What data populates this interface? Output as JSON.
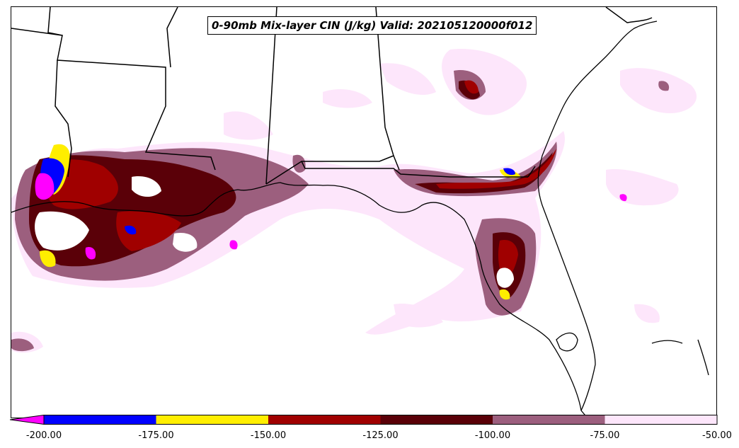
{
  "title": "0-90mb Mix-layer CIN (J/kg) Valid: 202105120000f012",
  "colorbar": {
    "tick_labels": [
      "-200.00",
      "-175.00",
      "-150.00",
      "-125.00",
      "-100.00",
      "-75.00",
      "-50.00"
    ],
    "bins": [
      {
        "range": "< -200",
        "color": "#ff00ff"
      },
      {
        "range": "-200 to -175",
        "color": "#0000ff"
      },
      {
        "range": "-175 to -150",
        "color": "#ffee00"
      },
      {
        "range": "-150 to -125",
        "color": "#a00000"
      },
      {
        "range": "-125 to -100",
        "color": "#5a0008"
      },
      {
        "range": "-100 to -75",
        "color": "#9c5f7e"
      },
      {
        "range": "-75 to -50",
        "color": "#fde6fb"
      }
    ],
    "extend": "min"
  },
  "colors": {
    "lightest": "#fde6fb",
    "mauve": "#9c5f7e",
    "dark_maroon": "#5a0008",
    "red": "#a00000",
    "yellow": "#ffee00",
    "blue": "#0000ff",
    "magenta": "#ff00ff",
    "boundary": "#000000"
  }
}
